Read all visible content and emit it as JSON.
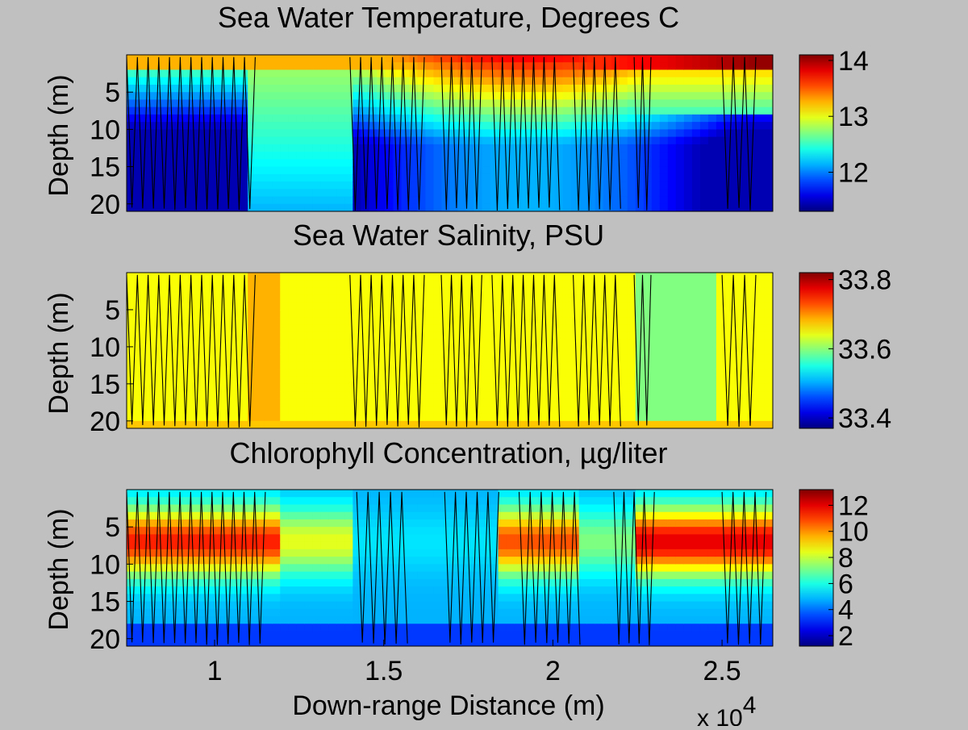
{
  "chart_data": [
    {
      "type": "heatmap",
      "title": "Sea Water Temperature, Degrees C",
      "xlabel": "",
      "ylabel": "Depth (m)",
      "xlim": [
        7400,
        26500
      ],
      "ylim": [
        21,
        0
      ],
      "yticks": [
        5,
        10,
        15,
        20
      ],
      "xticks": [],
      "colormap": "jet",
      "clim": [
        11.3,
        14.1
      ],
      "colorbar_ticks": [
        12,
        13,
        14
      ],
      "profile_lines": true,
      "profile_groups": [
        [
          7400,
          11200
        ],
        [
          14000,
          16200
        ],
        [
          16700,
          17900
        ],
        [
          18200,
          20200
        ],
        [
          20600,
          22000
        ],
        [
          22400,
          22900
        ],
        [
          25000,
          26000
        ]
      ]
    },
    {
      "type": "heatmap",
      "title": "Sea Water Salinity, PSU",
      "xlabel": "",
      "ylabel": "Depth (m)",
      "xlim": [
        7400,
        26500
      ],
      "ylim": [
        21,
        0
      ],
      "yticks": [
        5,
        10,
        15,
        20
      ],
      "xticks": [],
      "colormap": "jet",
      "clim": [
        33.37,
        33.82
      ],
      "colorbar_ticks": [
        33.4,
        33.6,
        33.8
      ],
      "colorbar_tick_labels": [
        "33.4",
        "33.6",
        "33.8"
      ],
      "profile_lines": true,
      "profile_groups": [
        [
          7400,
          11200
        ],
        [
          14000,
          16200
        ],
        [
          16700,
          17900
        ],
        [
          18200,
          20200
        ],
        [
          20600,
          22000
        ],
        [
          22400,
          22900
        ],
        [
          25000,
          26000
        ]
      ]
    },
    {
      "type": "heatmap",
      "title": "Chlorophyll Concentration, µg/liter",
      "xlabel": "Down-range Distance (m)",
      "ylabel": "Depth (m)",
      "xlim": [
        7400,
        26500
      ],
      "ylim": [
        21,
        0
      ],
      "yticks": [
        5,
        10,
        15,
        20
      ],
      "xticks": [
        10000,
        15000,
        20000,
        25000
      ],
      "xtick_labels": [
        "1",
        "1.5",
        "2",
        "2.5"
      ],
      "x_exponent_label": "x 10",
      "x_exponent_power": "4",
      "colormap": "jet",
      "clim": [
        1.2,
        13.2
      ],
      "colorbar_ticks": [
        2,
        4,
        6,
        8,
        10,
        12
      ],
      "profile_lines": true,
      "profile_groups": [
        [
          7400,
          11500
        ],
        [
          14200,
          15700
        ],
        [
          16800,
          18400
        ],
        [
          19000,
          20800
        ],
        [
          21800,
          23000
        ],
        [
          25000,
          26300
        ]
      ]
    }
  ]
}
